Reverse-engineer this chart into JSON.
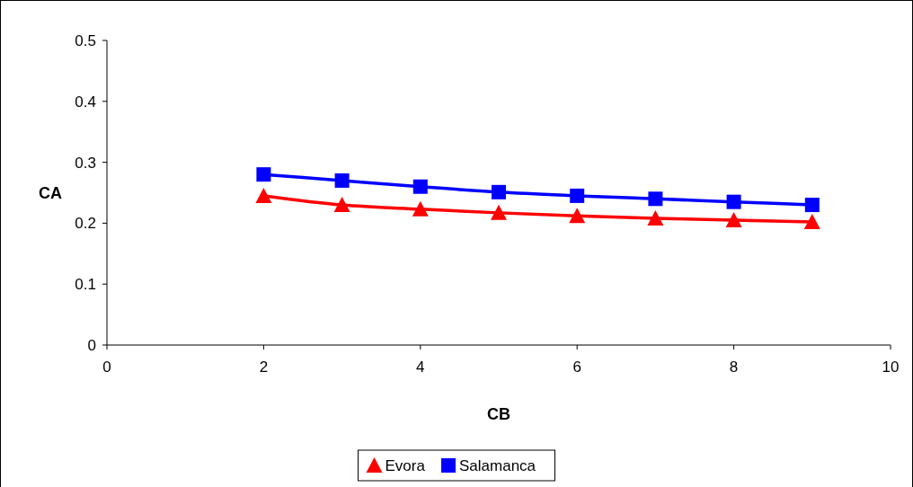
{
  "chart_data": {
    "type": "line",
    "xlabel": "CB",
    "ylabel": "CA",
    "x": [
      2,
      3,
      4,
      5,
      6,
      7,
      8,
      9
    ],
    "series": [
      {
        "name": "Evora",
        "color": "#ff0000",
        "marker": "triangle",
        "values": [
          0.245,
          0.23,
          0.223,
          0.217,
          0.212,
          0.208,
          0.205,
          0.202
        ]
      },
      {
        "name": "Salamanca",
        "color": "#0000ff",
        "marker": "square",
        "values": [
          0.28,
          0.27,
          0.26,
          0.251,
          0.245,
          0.24,
          0.235,
          0.23
        ]
      }
    ],
    "xlim": [
      0,
      10
    ],
    "xticks": [
      0,
      2,
      4,
      6,
      8,
      10
    ],
    "ylim": [
      0,
      0.5
    ],
    "yticks": [
      0,
      0.1,
      0.2,
      0.3,
      0.4,
      0.5
    ],
    "legend": "bottom",
    "grid": false,
    "line_style": "solid"
  }
}
